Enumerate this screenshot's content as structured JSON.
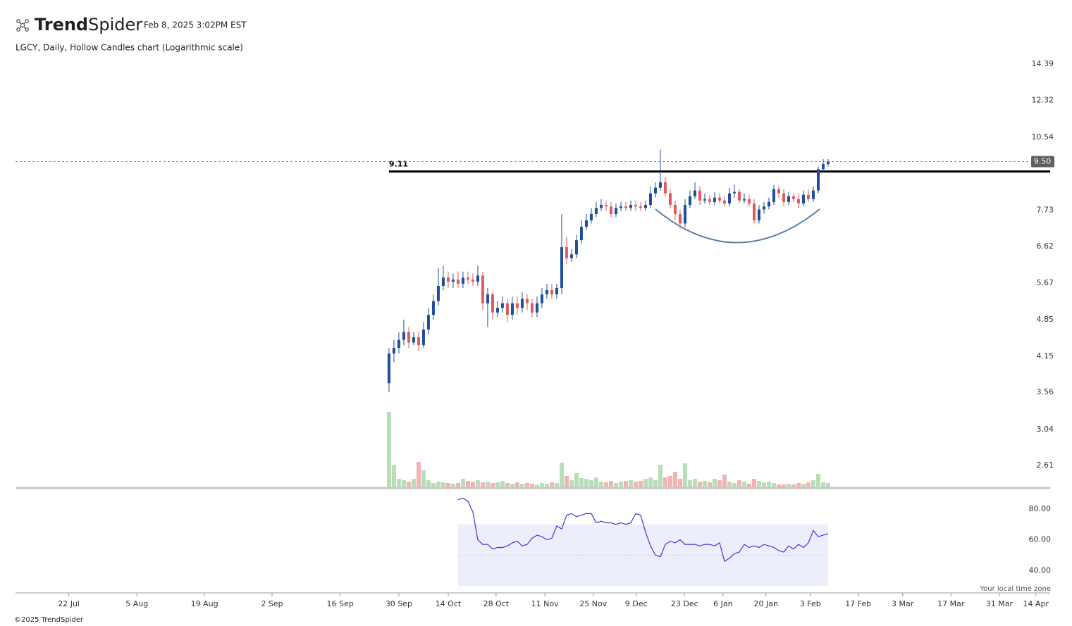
{
  "chart_data": {
    "type": "candlestick",
    "brand": [
      "Trend",
      "Spider"
    ],
    "timestamp": "Feb 8, 2025 3:02PM EST",
    "title": "LGCY, Daily, Hollow Candles chart (Logarithmic scale)",
    "footer": "©2025 TrendSpider",
    "timezone_note": "Your local time zone",
    "log_scale": true,
    "up_color": "#1f4e9c",
    "down_color": "#e05c5c",
    "volume_up_color": "#b9ddb9",
    "volume_down_color": "#f4b3b3",
    "rsi_color": "#3a3ad6",
    "open": [
      3.7,
      4.2,
      4.3,
      4.45,
      4.6,
      4.4,
      4.5,
      4.35,
      4.65,
      4.95,
      5.25,
      5.6,
      5.8,
      5.7,
      5.75,
      5.65,
      5.8,
      5.75,
      5.7,
      5.85,
      5.2,
      5.4,
      5.0,
      5.1,
      5.2,
      4.95,
      5.2,
      5.1,
      5.3,
      5.2,
      5.0,
      5.2,
      5.4,
      5.5,
      5.4,
      5.55,
      6.6,
      6.3,
      6.4,
      6.8,
      7.2,
      7.4,
      7.6,
      7.8,
      7.9,
      7.85,
      7.6,
      7.8,
      7.85,
      7.8,
      7.9,
      7.85,
      7.8,
      7.9,
      8.3,
      8.5,
      8.7,
      8.3,
      7.9,
      7.6,
      7.3,
      7.9,
      8.2,
      8.4,
      8.05,
      8.1,
      8.0,
      8.15,
      8.05,
      7.95,
      8.3,
      8.35,
      8.05,
      8.1,
      7.95,
      7.4,
      7.75,
      7.85,
      8.0,
      8.45,
      8.3,
      8.0,
      8.2,
      8.1,
      7.95,
      8.25,
      8.1,
      8.4,
      9.2,
      9.4
    ],
    "high": [
      4.3,
      4.45,
      4.6,
      4.85,
      4.7,
      4.6,
      4.6,
      4.8,
      5.1,
      5.4,
      6.05,
      6.1,
      5.95,
      5.9,
      5.95,
      5.95,
      5.95,
      5.9,
      6.1,
      5.95,
      5.55,
      5.45,
      5.25,
      5.35,
      5.3,
      5.35,
      5.35,
      5.45,
      5.4,
      5.3,
      5.35,
      5.55,
      5.65,
      5.65,
      5.65,
      7.6,
      6.9,
      6.55,
      6.95,
      7.4,
      7.6,
      7.8,
      8.0,
      8.1,
      8.05,
      8.0,
      7.95,
      8.0,
      8.0,
      8.05,
      8.05,
      8.0,
      8.05,
      8.55,
      8.7,
      10.0,
      8.9,
      8.45,
      8.05,
      7.75,
      8.1,
      8.4,
      8.7,
      8.55,
      8.3,
      8.25,
      8.35,
      8.3,
      8.2,
      8.5,
      8.6,
      8.45,
      8.3,
      8.25,
      8.1,
      7.9,
      8.0,
      8.15,
      8.6,
      8.55,
      8.45,
      8.35,
      8.3,
      8.3,
      8.4,
      8.45,
      8.55,
      9.3,
      9.6,
      9.6
    ],
    "low": [
      3.56,
      4.05,
      4.2,
      4.35,
      4.3,
      4.35,
      4.25,
      4.3,
      4.55,
      4.85,
      5.15,
      5.5,
      5.55,
      5.55,
      5.55,
      5.55,
      5.65,
      5.6,
      5.6,
      5.05,
      4.7,
      4.85,
      4.9,
      5.0,
      4.8,
      4.85,
      4.95,
      5.0,
      5.05,
      4.9,
      4.9,
      5.1,
      5.3,
      5.3,
      5.3,
      5.4,
      6.15,
      6.2,
      6.3,
      6.7,
      7.1,
      7.3,
      7.5,
      7.7,
      7.7,
      7.5,
      7.5,
      7.7,
      7.7,
      7.7,
      7.7,
      7.7,
      7.7,
      7.8,
      8.15,
      8.4,
      8.2,
      7.8,
      7.4,
      7.15,
      7.2,
      7.8,
      8.1,
      7.9,
      7.95,
      7.9,
      7.9,
      7.95,
      7.85,
      7.85,
      8.15,
      7.95,
      7.95,
      7.85,
      7.3,
      7.3,
      7.6,
      7.75,
      7.9,
      8.15,
      7.85,
      7.9,
      8.0,
      7.8,
      7.85,
      8.0,
      8.0,
      8.3,
      9.1,
      9.3
    ],
    "close": [
      4.2,
      4.3,
      4.45,
      4.6,
      4.4,
      4.5,
      4.35,
      4.65,
      4.95,
      5.25,
      5.6,
      5.8,
      5.7,
      5.75,
      5.65,
      5.8,
      5.75,
      5.7,
      5.85,
      5.2,
      5.4,
      5.0,
      5.1,
      5.2,
      4.95,
      5.2,
      5.1,
      5.3,
      5.2,
      5.0,
      5.2,
      5.4,
      5.5,
      5.4,
      5.55,
      6.6,
      6.3,
      6.4,
      6.8,
      7.2,
      7.4,
      7.6,
      7.8,
      7.9,
      7.85,
      7.6,
      7.8,
      7.85,
      7.8,
      7.9,
      7.85,
      7.8,
      7.9,
      8.3,
      8.5,
      8.7,
      8.3,
      7.9,
      7.6,
      7.3,
      7.9,
      8.2,
      8.4,
      8.05,
      8.1,
      8.0,
      8.15,
      8.05,
      7.95,
      8.3,
      8.35,
      8.05,
      8.1,
      7.95,
      7.4,
      7.75,
      7.85,
      8.0,
      8.45,
      8.3,
      8.0,
      8.2,
      8.1,
      7.95,
      8.25,
      8.1,
      8.4,
      9.2,
      9.4,
      9.5
    ],
    "volume": [
      107,
      32,
      12,
      10,
      8,
      12,
      36,
      24,
      10,
      6,
      8,
      7,
      6,
      5,
      6,
      12,
      9,
      8,
      10,
      7,
      8,
      6,
      7,
      9,
      6,
      5,
      7,
      5,
      6,
      5,
      4,
      6,
      5,
      7,
      6,
      35,
      16,
      10,
      20,
      13,
      12,
      10,
      14,
      8,
      7,
      9,
      6,
      8,
      9,
      10,
      8,
      9,
      12,
      14,
      10,
      32,
      14,
      16,
      22,
      12,
      34,
      10,
      12,
      8,
      9,
      7,
      12,
      10,
      18,
      8,
      6,
      10,
      8,
      5,
      12,
      9,
      7,
      8,
      6,
      4,
      4,
      5,
      4,
      6,
      5,
      7,
      10,
      19,
      7,
      6
    ],
    "vlim": [
      0,
      110
    ],
    "rsi": [
      null,
      null,
      null,
      null,
      null,
      null,
      null,
      null,
      null,
      null,
      null,
      null,
      null,
      null,
      86,
      87,
      85,
      78,
      60,
      57,
      57,
      54,
      55,
      55,
      56,
      58,
      59,
      56,
      57,
      61,
      63,
      62,
      60,
      61,
      69,
      67,
      76,
      77,
      75,
      76,
      77,
      77,
      71,
      72,
      71,
      71,
      70,
      71,
      70,
      71,
      77,
      76,
      65,
      56,
      50,
      49,
      57,
      59,
      58,
      60,
      57,
      57,
      57,
      56,
      57,
      57,
      56,
      58,
      46,
      48,
      51,
      52,
      57,
      55,
      56,
      55,
      57,
      56,
      55,
      53,
      52,
      56,
      54,
      57,
      55,
      58,
      66,
      62,
      63,
      64
    ],
    "rsi_band": [
      30,
      70
    ],
    "rsi_mid": 50,
    "rsi_ylim": [
      25.5,
      92.7
    ],
    "rsi_ticks": [
      {
        "value": 80,
        "label": "80.00"
      },
      {
        "value": 60,
        "label": "60.00"
      },
      {
        "value": 40,
        "label": "40.00"
      }
    ],
    "ylim": [
      2.37,
      15.09
    ],
    "yticks": [
      14.39,
      12.32,
      10.54,
      7.73,
      6.62,
      5.67,
      4.85,
      4.15,
      3.56,
      3.04,
      2.61
    ],
    "level": 9.11,
    "last_price": {
      "value": 9.5,
      "label": "9.50"
    },
    "xlim": [
      -75.7,
      134
    ],
    "xticks": [
      {
        "value": -64.9,
        "label": "22 Jul"
      },
      {
        "value": -51.1,
        "label": "5 Aug"
      },
      {
        "value": -37.4,
        "label": "19 Aug"
      },
      {
        "value": -23.7,
        "label": "2 Sep"
      },
      {
        "value": -9.9,
        "label": "16 Sep"
      },
      {
        "value": 2,
        "label": "30 Sep"
      },
      {
        "value": 12,
        "label": "14 Oct"
      },
      {
        "value": 21.7,
        "label": "28 Oct"
      },
      {
        "value": 31.6,
        "label": "11 Nov"
      },
      {
        "value": 41.4,
        "label": "25 Nov"
      },
      {
        "value": 50.1,
        "label": "9 Dec"
      },
      {
        "value": 59.9,
        "label": "23 Dec"
      },
      {
        "value": 67.7,
        "label": "6 Jan"
      },
      {
        "value": 76.4,
        "label": "20 Jan"
      },
      {
        "value": 85.4,
        "label": "3 Feb"
      },
      {
        "value": 95.1,
        "label": "17 Feb"
      },
      {
        "value": 104.1,
        "label": "3 Mar"
      },
      {
        "value": 113.9,
        "label": "17 Mar"
      },
      {
        "value": 123.7,
        "label": "31 Mar"
      },
      {
        "value": 131.1,
        "label": "14 Apr"
      }
    ]
  }
}
